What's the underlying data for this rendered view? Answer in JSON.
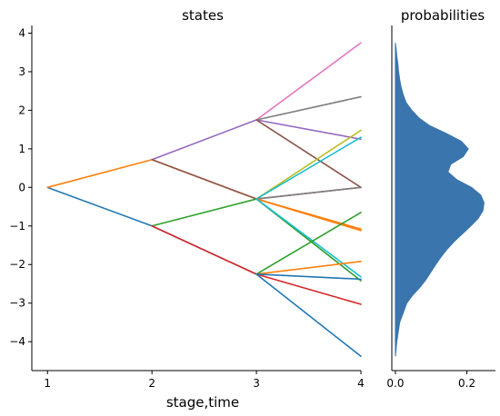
{
  "chart_data": [
    {
      "type": "line",
      "title": "states",
      "xlabel": "stage,time",
      "ylabel": "",
      "xlim": [
        0.85,
        4.0
      ],
      "ylim": [
        -4.75,
        4.2
      ],
      "xticks": [
        1,
        2,
        3,
        4
      ],
      "yticks": [
        -4,
        -3,
        -2,
        -1,
        0,
        1,
        2,
        3,
        4
      ],
      "grid": false,
      "series": [
        {
          "color": "#1f77b4",
          "x": [
            1,
            2,
            3,
            4
          ],
          "y": [
            0,
            -1.0,
            -2.25,
            -4.38
          ]
        },
        {
          "color": "#ff7f0e",
          "x": [
            1,
            2,
            3,
            4
          ],
          "y": [
            0,
            0.72,
            -0.3,
            -1.12
          ]
        },
        {
          "color": "#2ca02c",
          "x": [
            2,
            3,
            4
          ],
          "y": [
            -1.0,
            -0.3,
            -2.42
          ]
        },
        {
          "color": "#d62728",
          "x": [
            2,
            3,
            4
          ],
          "y": [
            -1.0,
            -2.25,
            -3.03
          ]
        },
        {
          "color": "#9467bd",
          "x": [
            2,
            3,
            4
          ],
          "y": [
            0.72,
            1.75,
            1.25
          ]
        },
        {
          "color": "#8c564b",
          "x": [
            2,
            3,
            4
          ],
          "y": [
            0.72,
            -0.3,
            0.0
          ]
        },
        {
          "color": "#e377c2",
          "x": [
            3,
            4
          ],
          "y": [
            1.75,
            3.75
          ]
        },
        {
          "color": "#7f7f7f",
          "x": [
            3,
            4
          ],
          "y": [
            1.75,
            2.35
          ]
        },
        {
          "color": "#8c564b",
          "x": [
            3,
            4
          ],
          "y": [
            1.75,
            0.0
          ]
        },
        {
          "color": "#bcbd22",
          "x": [
            3,
            4
          ],
          "y": [
            -0.3,
            1.48
          ]
        },
        {
          "color": "#17becf",
          "x": [
            3,
            4
          ],
          "y": [
            -0.3,
            1.3
          ]
        },
        {
          "color": "#7f7f7f",
          "x": [
            3,
            4
          ],
          "y": [
            -0.3,
            0.0
          ]
        },
        {
          "color": "#ff7f0e",
          "x": [
            3,
            4
          ],
          "y": [
            -0.3,
            -1.08
          ]
        },
        {
          "color": "#17becf",
          "x": [
            3,
            4
          ],
          "y": [
            -0.3,
            -2.32
          ]
        },
        {
          "color": "#2ca02c",
          "x": [
            3,
            4
          ],
          "y": [
            -2.25,
            -0.65
          ]
        },
        {
          "color": "#ff7f0e",
          "x": [
            3,
            4
          ],
          "y": [
            -2.25,
            -1.92
          ]
        },
        {
          "color": "#1f77b4",
          "x": [
            3,
            4
          ],
          "y": [
            -2.25,
            -2.38
          ]
        }
      ]
    },
    {
      "type": "area",
      "title": "probabilities",
      "xlabel": "",
      "ylabel": "",
      "xlim": [
        -0.01,
        0.28
      ],
      "ylim": [
        -4.75,
        4.2
      ],
      "xticks": [
        0.0,
        0.2
      ],
      "xtick_labels": [
        "0.0",
        "0.2"
      ],
      "grid": false,
      "color": "#3a75ad",
      "density": {
        "y": [
          -4.38,
          -4.0,
          -3.5,
          -3.0,
          -2.8,
          -2.6,
          -2.4,
          -2.2,
          -2.0,
          -1.8,
          -1.6,
          -1.4,
          -1.2,
          -1.0,
          -0.8,
          -0.6,
          -0.4,
          -0.2,
          0.0,
          0.2,
          0.4,
          0.6,
          0.8,
          1.0,
          1.2,
          1.4,
          1.6,
          1.8,
          2.0,
          2.2,
          2.4,
          2.6,
          2.8,
          3.0,
          3.2,
          3.4,
          3.6,
          3.75
        ],
        "p": [
          0.0,
          0.004,
          0.012,
          0.032,
          0.048,
          0.068,
          0.085,
          0.099,
          0.113,
          0.128,
          0.145,
          0.165,
          0.188,
          0.211,
          0.232,
          0.245,
          0.248,
          0.239,
          0.213,
          0.172,
          0.147,
          0.155,
          0.19,
          0.204,
          0.184,
          0.142,
          0.096,
          0.066,
          0.046,
          0.03,
          0.022,
          0.016,
          0.012,
          0.009,
          0.007,
          0.004,
          0.002,
          0.0
        ]
      }
    }
  ]
}
